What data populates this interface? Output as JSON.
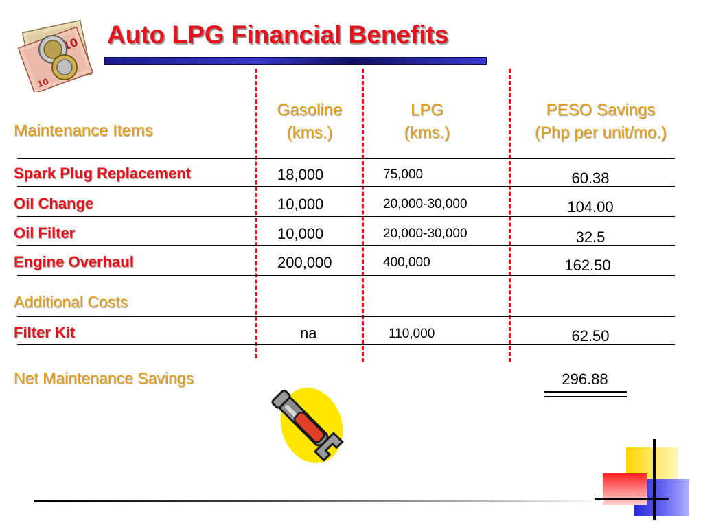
{
  "title": "Auto LPG Financial Benefits",
  "headers": {
    "maintenance_items": "Maintenance Items",
    "gasoline_line1": "Gasoline",
    "gasoline_line2": "(kms.)",
    "lpg_line1": "LPG",
    "lpg_line2": "(kms.)",
    "savings_line1": "PESO Savings",
    "savings_line2": "(Php per unit/mo.)"
  },
  "rows": [
    {
      "item": "Spark Plug Replacement",
      "gasoline": "18,000",
      "lpg": "75,000",
      "savings": "60.38"
    },
    {
      "item": "Oil Change",
      "gasoline": "10,000",
      "lpg": "20,000-30,000",
      "savings": "104.00"
    },
    {
      "item": "Oil Filter",
      "gasoline": "10,000",
      "lpg": "20,000-30,000",
      "savings": "32.5"
    },
    {
      "item": "Engine Overhaul",
      "gasoline": "200,000",
      "lpg": "400,000",
      "savings": "162.50"
    }
  ],
  "additional_costs_label": "Additional Costs",
  "additional_rows": [
    {
      "item": "Filter Kit",
      "gasoline": "na",
      "lpg": "110,000",
      "savings": "62.50"
    }
  ],
  "net": {
    "label": "Net Maintenance Savings",
    "value": "296.88"
  },
  "icons": [
    "euro-money-icon",
    "wrench-icon"
  ],
  "colors": {
    "title": "#e8121c",
    "header": "#e8a010",
    "row_label": "#e8121c",
    "divider": "#e8121c"
  }
}
